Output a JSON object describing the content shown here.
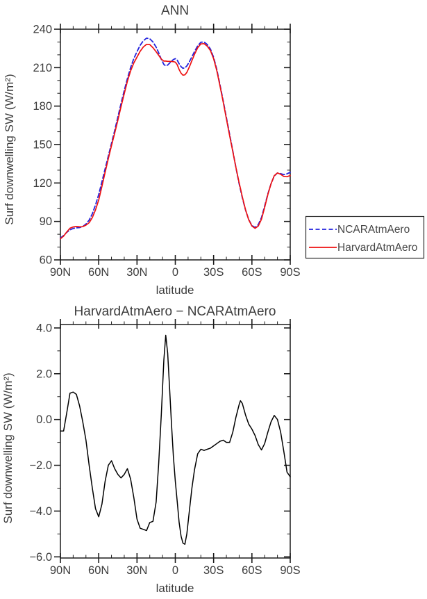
{
  "figure": {
    "title_top": "ANN",
    "title_bottom": "HarvardAtmAero − NCARAtmAero"
  },
  "chart_data": [
    {
      "type": "line",
      "title": "ANN",
      "xlabel": "latitude",
      "ylabel": "Surf downwelling SW (W/m²)",
      "xlim": [
        90,
        -90
      ],
      "ylim": [
        60,
        240
      ],
      "grid": false,
      "legend_position": "outside-right",
      "xticks": {
        "major": [
          {
            "v": 90,
            "label": "90N"
          },
          {
            "v": 60,
            "label": "60N"
          },
          {
            "v": 30,
            "label": "30N"
          },
          {
            "v": 0,
            "label": "0"
          },
          {
            "v": -30,
            "label": "30S"
          },
          {
            "v": -60,
            "label": "60S"
          },
          {
            "v": -90,
            "label": "90S"
          }
        ],
        "minor": [
          80,
          70,
          50,
          40,
          20,
          10,
          -10,
          -20,
          -40,
          -50,
          -70,
          -80
        ]
      },
      "yticks": {
        "major": [
          {
            "v": 240,
            "label": "240"
          },
          {
            "v": 210,
            "label": "210"
          },
          {
            "v": 180,
            "label": "180"
          },
          {
            "v": 150,
            "label": "150"
          },
          {
            "v": 120,
            "label": "120"
          },
          {
            "v": 90,
            "label": "90"
          },
          {
            "v": 60,
            "label": "60"
          }
        ],
        "minor": [
          230,
          220,
          200,
          190,
          170,
          160,
          140,
          130,
          110,
          100,
          80,
          70
        ]
      },
      "lat": [
        90,
        87.5,
        85,
        82.5,
        80,
        77.5,
        75,
        72.5,
        70,
        67.5,
        65,
        62.5,
        60,
        57.5,
        55,
        52.5,
        50,
        47.5,
        45,
        42.5,
        40,
        37.5,
        35,
        32.5,
        30,
        27.5,
        25,
        22.5,
        20,
        17.5,
        15,
        13,
        11,
        9,
        7.5,
        6,
        4.5,
        3,
        1.5,
        0,
        -1.5,
        -3,
        -4.5,
        -6,
        -7.5,
        -9,
        -11,
        -13,
        -15,
        -17.5,
        -20,
        -22.5,
        -25,
        -27.5,
        -30,
        -32.5,
        -35,
        -37.5,
        -40,
        -42.5,
        -45,
        -47.5,
        -50,
        -51,
        -52.5,
        -55,
        -57.5,
        -60,
        -62.5,
        -65,
        -67.5,
        -70,
        -72.5,
        -75,
        -77.5,
        -80,
        -82.5,
        -85,
        -87.5,
        -90
      ],
      "series": [
        {
          "name": "NCARAtmAero",
          "color": "#2222dd",
          "dash": "6,3.5",
          "width": 1.8,
          "values": [
            77,
            79,
            81.5,
            83.5,
            84.5,
            85,
            85.2,
            86,
            88,
            91,
            96,
            103,
            111,
            121,
            131,
            141,
            151,
            161,
            171.5,
            182,
            192,
            201.5,
            210,
            217,
            222.5,
            227.5,
            231,
            233,
            232.5,
            230,
            226,
            221.5,
            216.5,
            212.5,
            211.4,
            212,
            213.5,
            215,
            216.3,
            217,
            215.8,
            213,
            210.8,
            209.5,
            209.8,
            211.3,
            214.5,
            218.5,
            222.5,
            227,
            229.8,
            230,
            228,
            224.5,
            218,
            208.5,
            196.5,
            184,
            171,
            158,
            145,
            132,
            119.5,
            115,
            108.5,
            99,
            91.5,
            86.8,
            85.3,
            87.5,
            93,
            102,
            111.5,
            119.5,
            125.5,
            127.8,
            127.3,
            126.5,
            127.2,
            128.3
          ]
        },
        {
          "name": "HarvardAtmAero",
          "color": "#ee1111",
          "dash": "",
          "width": 1.7,
          "values": [
            76.5,
            78.5,
            81.8,
            84.7,
            85.7,
            86.1,
            85.8,
            85.9,
            87.1,
            89,
            93,
            99.1,
            106.8,
            117.3,
            128.3,
            139,
            149.2,
            158.9,
            169.1,
            179.5,
            189.6,
            199.4,
            207.4,
            213.6,
            218.2,
            222.8,
            226.2,
            228.2,
            228,
            225.6,
            222.4,
            219.6,
            216.7,
            215.1,
            215.1,
            214.9,
            214.9,
            214.8,
            214.7,
            214.3,
            212.2,
            208.5,
            205.7,
            204.1,
            204.4,
            206.3,
            210.5,
            215.5,
            220.3,
            225.5,
            228.5,
            228.7,
            226.7,
            223.3,
            216.9,
            207.5,
            195.6,
            183.1,
            170,
            157,
            144.5,
            132.1,
            120.2,
            115.8,
            109.2,
            99.2,
            91.3,
            86.4,
            84.6,
            86.4,
            91.7,
            101,
            111,
            119.4,
            125.7,
            127.8,
            126.8,
            125.1,
            124.9,
            125.8
          ]
        }
      ]
    },
    {
      "type": "line",
      "title": "HarvardAtmAero − NCARAtmAero",
      "xlabel": "latitude",
      "ylabel": "Surf downwelling SW (W/m²)",
      "xlim": [
        90,
        -90
      ],
      "ylim": [
        -6.05,
        4.15
      ],
      "grid": false,
      "xticks": {
        "major": [
          {
            "v": 90,
            "label": "90N"
          },
          {
            "v": 60,
            "label": "60N"
          },
          {
            "v": 30,
            "label": "30N"
          },
          {
            "v": 0,
            "label": "0"
          },
          {
            "v": -30,
            "label": "30S"
          },
          {
            "v": -60,
            "label": "60S"
          },
          {
            "v": -90,
            "label": "90S"
          }
        ],
        "minor": [
          80,
          70,
          50,
          40,
          20,
          10,
          -10,
          -20,
          -40,
          -50,
          -70,
          -80
        ]
      },
      "yticks": {
        "major": [
          {
            "v": 4,
            "label": "4.0"
          },
          {
            "v": 2,
            "label": "2.0"
          },
          {
            "v": 0,
            "label": "0.0"
          },
          {
            "v": -2,
            "label": "−2.0"
          },
          {
            "v": -4,
            "label": "−4.0"
          },
          {
            "v": -6,
            "label": "−6.0"
          }
        ],
        "minor": [
          3,
          1,
          -1,
          -3,
          -5
        ]
      },
      "lat": [
        90,
        87.5,
        85,
        82.5,
        80,
        77.5,
        75,
        72.5,
        70,
        67.5,
        65,
        62.5,
        60,
        57.5,
        55,
        52.5,
        50,
        47.5,
        45,
        42.5,
        40,
        37.5,
        35,
        32.5,
        30,
        27.5,
        25,
        22.5,
        20,
        17.5,
        15,
        13,
        11,
        9,
        7.5,
        6,
        4.5,
        3,
        1.5,
        0,
        -1.5,
        -3,
        -4.5,
        -6,
        -7.5,
        -9,
        -11,
        -13,
        -15,
        -17.5,
        -20,
        -22.5,
        -25,
        -27.5,
        -30,
        -32.5,
        -35,
        -37.5,
        -40,
        -42.5,
        -45,
        -47.5,
        -50,
        -51,
        -52.5,
        -55,
        -57.5,
        -60,
        -62.5,
        -65,
        -67.5,
        -70,
        -72.5,
        -75,
        -77.5,
        -80,
        -82.5,
        -85,
        -87.5,
        -90
      ],
      "series": [
        {
          "name": "HarvardAtmAero − NCARAtmAero",
          "color": "#000000",
          "dash": "",
          "width": 1.5,
          "values": [
            -0.5,
            -0.5,
            0.3,
            1.15,
            1.2,
            1.1,
            0.6,
            -0.1,
            -0.9,
            -2.0,
            -3.0,
            -3.9,
            -4.25,
            -3.7,
            -2.7,
            -2.0,
            -1.8,
            -2.15,
            -2.4,
            -2.55,
            -2.4,
            -2.15,
            -2.6,
            -3.4,
            -4.35,
            -4.75,
            -4.8,
            -4.85,
            -4.5,
            -4.45,
            -3.6,
            -1.9,
            0.2,
            2.6,
            3.68,
            2.9,
            1.4,
            -0.2,
            -1.6,
            -2.7,
            -3.6,
            -4.5,
            -5.1,
            -5.4,
            -5.45,
            -5.0,
            -4.0,
            -3.0,
            -2.2,
            -1.5,
            -1.3,
            -1.35,
            -1.3,
            -1.25,
            -1.15,
            -1.05,
            -0.95,
            -0.9,
            -1.0,
            -1.0,
            -0.55,
            0.1,
            0.65,
            0.82,
            0.7,
            0.2,
            -0.2,
            -0.42,
            -0.7,
            -1.1,
            -1.33,
            -1.05,
            -0.55,
            -0.1,
            0.18,
            0.0,
            -0.55,
            -1.4,
            -2.3,
            -2.5
          ]
        }
      ]
    }
  ]
}
